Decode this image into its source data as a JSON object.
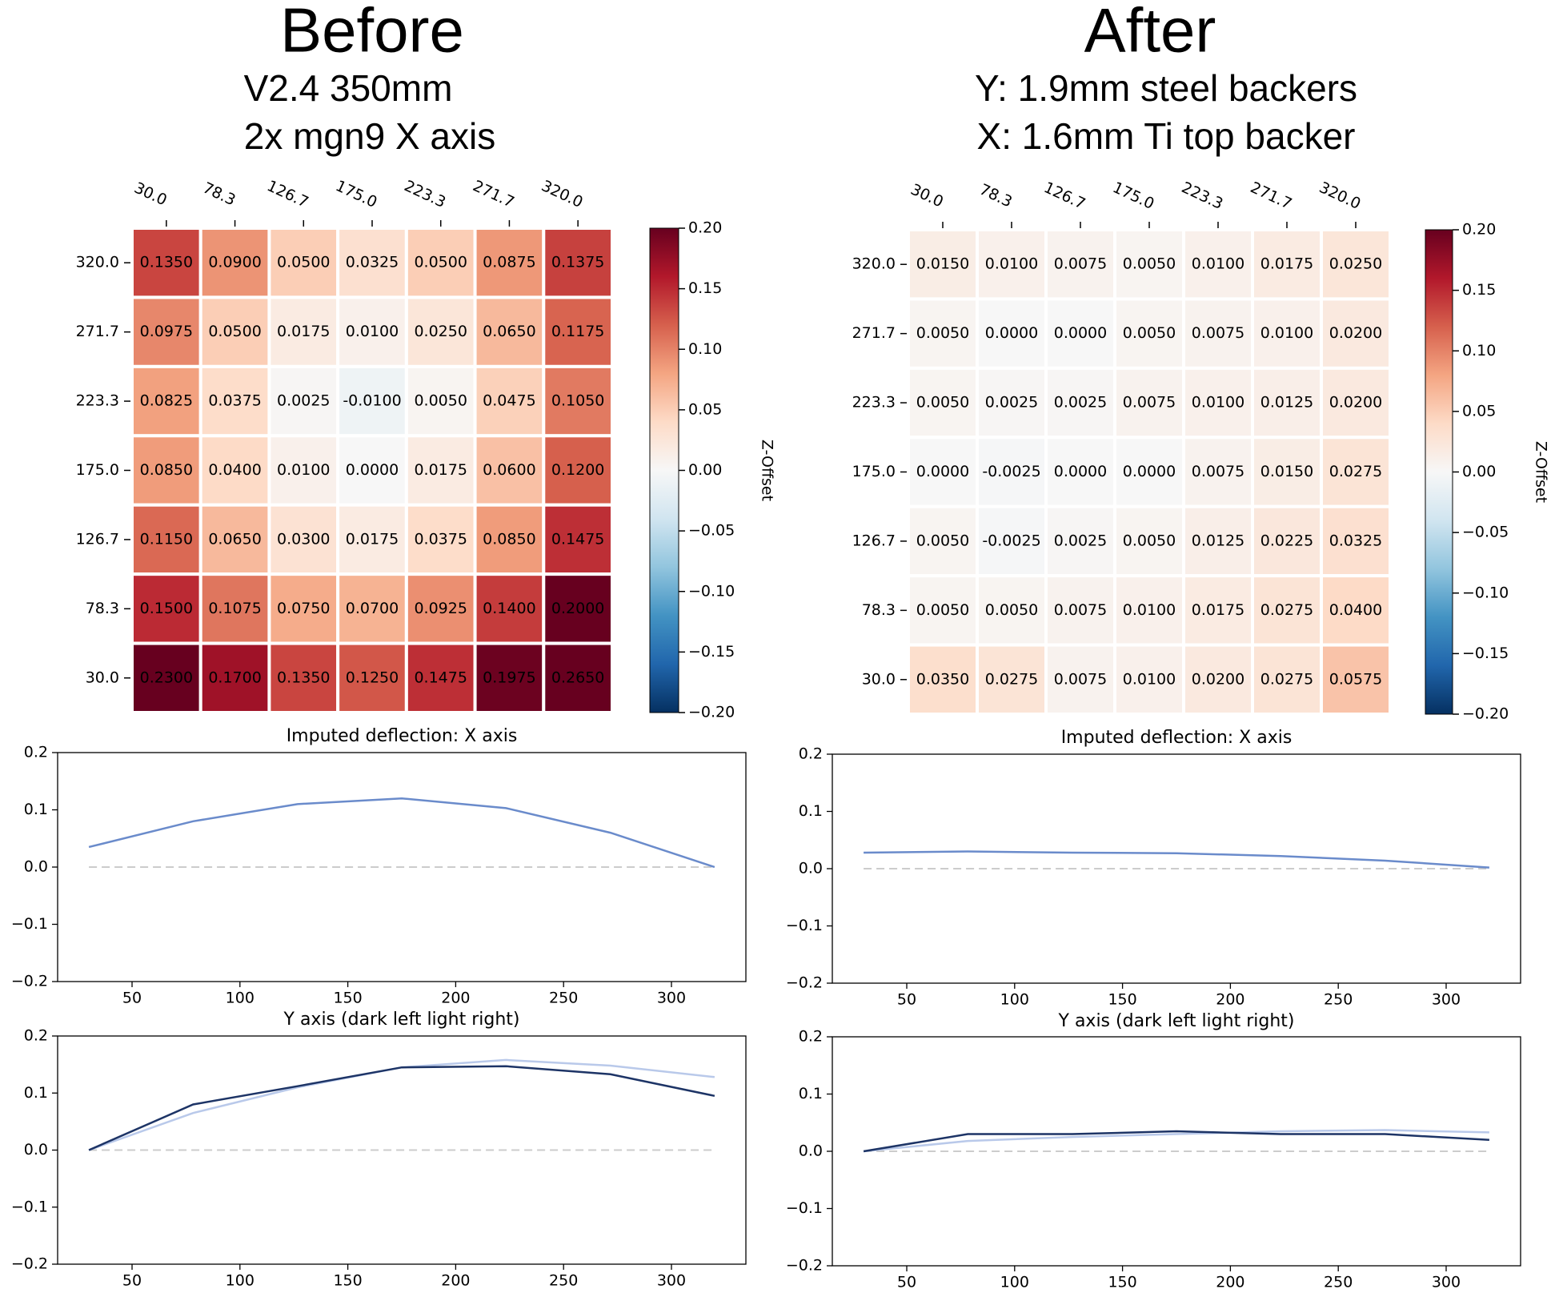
{
  "panels": [
    {
      "title": "Before",
      "subtitle": [
        "V2.4 350mm",
        "2x mgn9 X axis"
      ]
    },
    {
      "title": "After",
      "subtitle": [
        "Y: 1.9mm steel backers",
        "X: 1.6mm Ti top backer"
      ]
    }
  ],
  "chart_data": [
    {
      "type": "heatmap",
      "colormap": "RdBu_r",
      "colorbar_label": "Z-Offset",
      "x_categories": [
        "30.0",
        "78.3",
        "126.7",
        "175.0",
        "223.3",
        "271.7",
        "320.0"
      ],
      "y_categories": [
        "320.0",
        "271.7",
        "223.3",
        "175.0",
        "126.7",
        "78.3",
        "30.0"
      ],
      "values": [
        [
          0.135,
          0.09,
          0.05,
          0.0325,
          0.05,
          0.0875,
          0.1375
        ],
        [
          0.0975,
          0.05,
          0.0175,
          0.01,
          0.025,
          0.065,
          0.1175
        ],
        [
          0.0825,
          0.0375,
          0.0025,
          -0.01,
          0.005,
          0.0475,
          0.105
        ],
        [
          0.085,
          0.04,
          0.01,
          0,
          0.0175,
          0.06,
          0.12
        ],
        [
          0.115,
          0.065,
          0.03,
          0.0175,
          0.0375,
          0.085,
          0.1475
        ],
        [
          0.15,
          0.1075,
          0.075,
          0.07,
          0.0925,
          0.14,
          0.2
        ],
        [
          0.23,
          0.17,
          0.135,
          0.125,
          0.1475,
          0.1975,
          0.265
        ]
      ],
      "value_labels": [
        [
          "0.1350",
          "0.0900",
          "0.0500",
          "0.0325",
          "0.0500",
          "0.0875",
          "0.1375"
        ],
        [
          "0.0975",
          "0.0500",
          "0.0175",
          "0.0100",
          "0.0250",
          "0.0650",
          "0.1175"
        ],
        [
          "0.0825",
          "0.0375",
          "0.0025",
          "-0.0100",
          "0.0050",
          "0.0475",
          "0.1050"
        ],
        [
          "0.0850",
          "0.0400",
          "0.0100",
          "0.0000",
          "0.0175",
          "0.0600",
          "0.1200"
        ],
        [
          "0.1150",
          "0.0650",
          "0.0300",
          "0.0175",
          "0.0375",
          "0.0850",
          "0.1475"
        ],
        [
          "0.1500",
          "0.1075",
          "0.0750",
          "0.0700",
          "0.0925",
          "0.1400",
          "0.2000"
        ],
        [
          "0.2300",
          "0.1700",
          "0.1350",
          "0.1250",
          "0.1475",
          "0.1975",
          "0.2650"
        ]
      ],
      "clim": [
        -0.2,
        0.2
      ],
      "cticks": [
        {
          "value": 0.2,
          "label": "0.20"
        },
        {
          "value": 0.15,
          "label": "0.15"
        },
        {
          "value": 0.1,
          "label": "0.10"
        },
        {
          "value": 0.05,
          "label": "0.05"
        },
        {
          "value": 0,
          "label": "0.00"
        },
        {
          "value": -0.05,
          "label": "−0.05"
        },
        {
          "value": -0.1,
          "label": "−0.10"
        },
        {
          "value": -0.15,
          "label": "−0.15"
        },
        {
          "value": -0.2,
          "label": "−0.20"
        }
      ]
    },
    {
      "type": "line",
      "title": "Imputed deflection: X axis",
      "xlabel": "Y axis (dark left light right)",
      "x": [
        30,
        78.3,
        126.7,
        175,
        223.3,
        271.7,
        320
      ],
      "series": [
        {
          "color": "#6a8bcb",
          "values": [
            0.035,
            0.08,
            0.11,
            0.12,
            0.103,
            0.06,
            0
          ]
        }
      ],
      "hlines": [
        0
      ],
      "xlim": [
        15.5,
        334.5
      ],
      "xticks": [
        50,
        100,
        150,
        200,
        250,
        300
      ],
      "ylim": [
        -0.2,
        0.2
      ],
      "yticks": [
        {
          "value": 0.2,
          "label": "0.2"
        },
        {
          "value": 0.1,
          "label": "0.1"
        },
        {
          "value": 0,
          "label": "0.0"
        },
        {
          "value": -0.1,
          "label": "−0.1"
        },
        {
          "value": -0.2,
          "label": "−0.2"
        }
      ]
    },
    {
      "type": "line",
      "x": [
        30,
        78.3,
        126.7,
        175,
        223.3,
        271.7,
        320
      ],
      "series": [
        {
          "color": "#b9c9ea",
          "values": [
            0,
            0.065,
            0.11,
            0.145,
            0.158,
            0.148,
            0.128
          ]
        },
        {
          "color": "#1d3466",
          "values": [
            0,
            0.08,
            0.112,
            0.145,
            0.147,
            0.133,
            0.095
          ]
        }
      ],
      "hlines": [
        0
      ],
      "xlim": [
        15.5,
        334.5
      ],
      "xticks": [
        50,
        100,
        150,
        200,
        250,
        300
      ],
      "ylim": [
        -0.2,
        0.2
      ],
      "yticks": [
        {
          "value": 0.2,
          "label": "0.2"
        },
        {
          "value": 0.1,
          "label": "0.1"
        },
        {
          "value": 0,
          "label": "0.0"
        },
        {
          "value": -0.1,
          "label": "−0.1"
        },
        {
          "value": -0.2,
          "label": "−0.2"
        }
      ]
    },
    {
      "type": "heatmap",
      "colormap": "RdBu_r",
      "colorbar_label": "Z-Offset",
      "x_categories": [
        "30.0",
        "78.3",
        "126.7",
        "175.0",
        "223.3",
        "271.7",
        "320.0"
      ],
      "y_categories": [
        "320.0",
        "271.7",
        "223.3",
        "175.0",
        "126.7",
        "78.3",
        "30.0"
      ],
      "values": [
        [
          0.015,
          0.01,
          0.0075,
          0.005,
          0.01,
          0.0175,
          0.025
        ],
        [
          0.005,
          0,
          0,
          0.005,
          0.0075,
          0.01,
          0.02
        ],
        [
          0.005,
          0.0025,
          0.0025,
          0.0075,
          0.01,
          0.0125,
          0.02
        ],
        [
          0,
          -0.0025,
          0,
          0,
          0.0075,
          0.015,
          0.0275
        ],
        [
          0.005,
          -0.0025,
          0.0025,
          0.005,
          0.0125,
          0.0225,
          0.0325
        ],
        [
          0.005,
          0.005,
          0.0075,
          0.01,
          0.0175,
          0.0275,
          0.04
        ],
        [
          0.035,
          0.0275,
          0.0075,
          0.01,
          0.02,
          0.0275,
          0.0575
        ]
      ],
      "value_labels": [
        [
          "0.0150",
          "0.0100",
          "0.0075",
          "0.0050",
          "0.0100",
          "0.0175",
          "0.0250"
        ],
        [
          "0.0050",
          "0.0000",
          "0.0000",
          "0.0050",
          "0.0075",
          "0.0100",
          "0.0200"
        ],
        [
          "0.0050",
          "0.0025",
          "0.0025",
          "0.0075",
          "0.0100",
          "0.0125",
          "0.0200"
        ],
        [
          "0.0000",
          "-0.0025",
          "0.0000",
          "0.0000",
          "0.0075",
          "0.0150",
          "0.0275"
        ],
        [
          "0.0050",
          "-0.0025",
          "0.0025",
          "0.0050",
          "0.0125",
          "0.0225",
          "0.0325"
        ],
        [
          "0.0050",
          "0.0050",
          "0.0075",
          "0.0100",
          "0.0175",
          "0.0275",
          "0.0400"
        ],
        [
          "0.0350",
          "0.0275",
          "0.0075",
          "0.0100",
          "0.0200",
          "0.0275",
          "0.0575"
        ]
      ],
      "clim": [
        -0.2,
        0.2
      ],
      "cticks": [
        {
          "value": 0.2,
          "label": "0.20"
        },
        {
          "value": 0.15,
          "label": "0.15"
        },
        {
          "value": 0.1,
          "label": "0.10"
        },
        {
          "value": 0.05,
          "label": "0.05"
        },
        {
          "value": 0,
          "label": "0.00"
        },
        {
          "value": -0.05,
          "label": "−0.05"
        },
        {
          "value": -0.1,
          "label": "−0.10"
        },
        {
          "value": -0.15,
          "label": "−0.15"
        },
        {
          "value": -0.2,
          "label": "−0.20"
        }
      ]
    },
    {
      "type": "line",
      "title": "Imputed deflection: X axis",
      "xlabel": "Y axis (dark left light right)",
      "x": [
        30,
        78.3,
        126.7,
        175,
        223.3,
        271.7,
        320
      ],
      "series": [
        {
          "color": "#6a8bcb",
          "values": [
            0.028,
            0.03,
            0.028,
            0.027,
            0.022,
            0.014,
            0.002
          ]
        }
      ],
      "hlines": [
        0
      ],
      "xlim": [
        15.5,
        334.5
      ],
      "xticks": [
        50,
        100,
        150,
        200,
        250,
        300
      ],
      "ylim": [
        -0.2,
        0.2
      ],
      "yticks": [
        {
          "value": 0.2,
          "label": "0.2"
        },
        {
          "value": 0.1,
          "label": "0.1"
        },
        {
          "value": 0,
          "label": "0.0"
        },
        {
          "value": -0.1,
          "label": "−0.1"
        },
        {
          "value": -0.2,
          "label": "−0.2"
        }
      ]
    },
    {
      "type": "line",
      "x": [
        30,
        78.3,
        126.7,
        175,
        223.3,
        271.7,
        320
      ],
      "series": [
        {
          "color": "#b9c9ea",
          "values": [
            0,
            0.018,
            0.025,
            0.03,
            0.035,
            0.037,
            0.033
          ]
        },
        {
          "color": "#1d3466",
          "values": [
            0,
            0.03,
            0.03,
            0.035,
            0.03,
            0.03,
            0.02
          ]
        }
      ],
      "hlines": [
        0
      ],
      "xlim": [
        15.5,
        334.5
      ],
      "xticks": [
        50,
        100,
        150,
        200,
        250,
        300
      ],
      "ylim": [
        -0.2,
        0.2
      ],
      "yticks": [
        {
          "value": 0.2,
          "label": "0.2"
        },
        {
          "value": 0.1,
          "label": "0.1"
        },
        {
          "value": 0,
          "label": "0.0"
        },
        {
          "value": -0.1,
          "label": "−0.1"
        },
        {
          "value": -0.2,
          "label": "−0.2"
        }
      ]
    }
  ]
}
